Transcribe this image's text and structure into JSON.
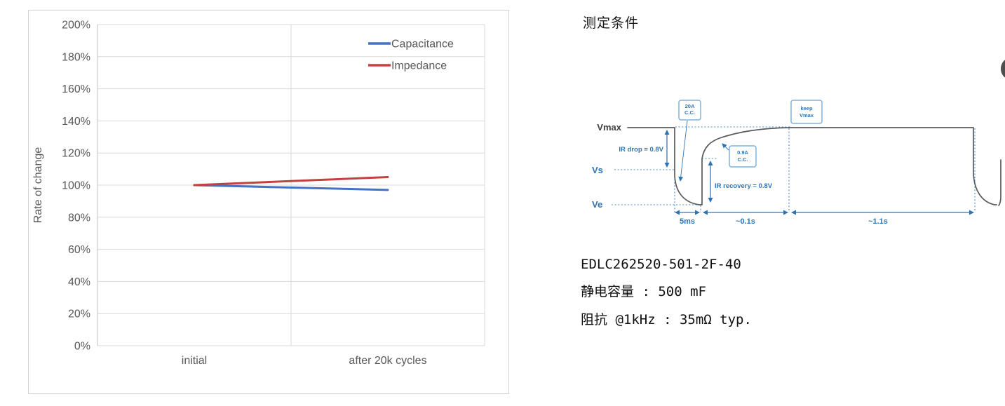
{
  "chart_data": {
    "type": "line",
    "categories": [
      "initial",
      "after 20k cycles"
    ],
    "series": [
      {
        "name": "Capacitance",
        "color": "#4472C4",
        "values": [
          100,
          97
        ]
      },
      {
        "name": "Impedance",
        "color": "#C3413E",
        "values": [
          100,
          105
        ]
      }
    ],
    "ylabel": "Rate of change",
    "ylim": [
      0,
      200
    ],
    "ytick_step": 20,
    "ytick_suffix": "%",
    "grid": true,
    "legend_position": "top-right",
    "axis_text_color": "#595959",
    "grid_color": "#d9d9d9"
  },
  "measurement": {
    "title": "测定条件",
    "waveform": {
      "vmax_label": "Vmax",
      "vs_label": "Vs",
      "ve_label": "Ve",
      "ir_drop_label": "IR drop = 0.8V",
      "ir_recovery_label": "IR recovery = 0.8V",
      "charge_box": [
        "20A",
        "C.C."
      ],
      "recovery_box": [
        "0.9A",
        "C.C."
      ],
      "keep_box": [
        "keep",
        "Vmax"
      ],
      "time_labels": [
        "5ms",
        "~0.1s",
        "~1.1s"
      ],
      "trace_color": "#595959",
      "annotation_color": "#2E74B5",
      "box_border_color": "#7FB2E0"
    },
    "specs": {
      "part_number": "EDLC262520-501-2F-40",
      "capacitance": "静电容量 : 500 mF",
      "impedance": "阻抗 @1kHz : 35mΩ typ."
    }
  }
}
